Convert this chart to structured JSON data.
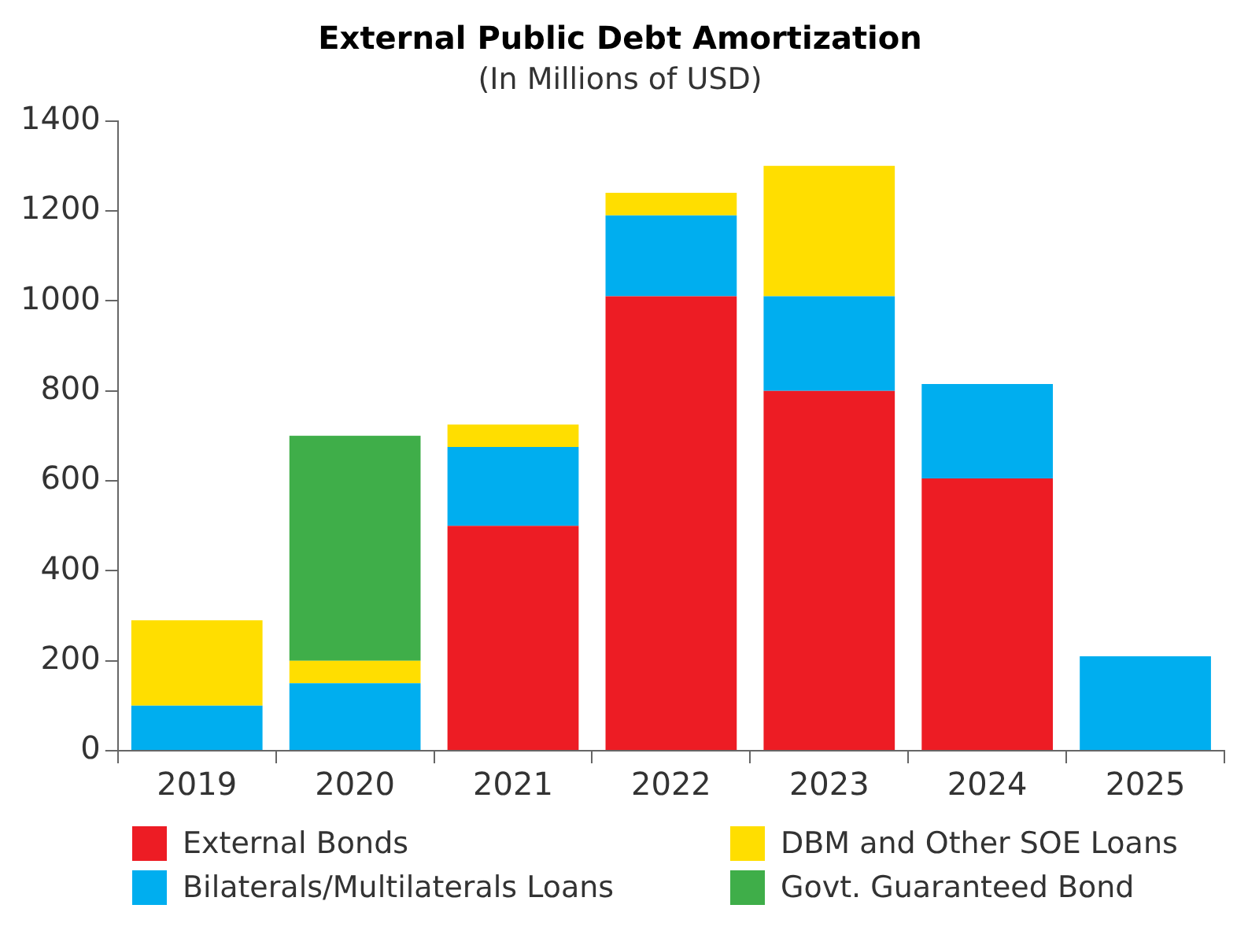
{
  "chart_data": {
    "type": "bar",
    "title": "External Public Debt Amortization",
    "subtitle": "(In Millions of USD)",
    "categories": [
      "2019",
      "2020",
      "2021",
      "2022",
      "2023",
      "2024",
      "2025"
    ],
    "stacked": true,
    "legend": "bottom",
    "grid": false,
    "ylim": [
      0,
      1400
    ],
    "yticks": [
      0,
      200,
      400,
      600,
      800,
      1000,
      1200,
      1400
    ],
    "series": [
      {
        "name": "External Bonds",
        "color": "#ed1c24",
        "values": [
          0,
          0,
          500,
          1010,
          800,
          605,
          0
        ]
      },
      {
        "name": "Bilaterals/Multilaterals Loans",
        "color": "#00aeef",
        "values": [
          100,
          150,
          175,
          180,
          210,
          210,
          210
        ]
      },
      {
        "name": "DBM and Other SOE Loans",
        "color": "#ffde00",
        "values": [
          190,
          50,
          50,
          50,
          290,
          0,
          0
        ]
      },
      {
        "name": "Govt. Guaranteed Bond",
        "color": "#3fae49",
        "values": [
          0,
          500,
          0,
          0,
          0,
          0,
          0
        ]
      }
    ]
  }
}
